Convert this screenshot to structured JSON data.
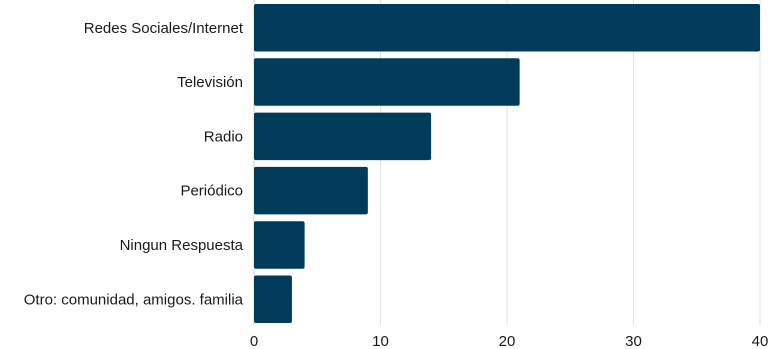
{
  "chart_data": {
    "type": "bar",
    "orientation": "horizontal",
    "categories": [
      "Redes Sociales/Internet",
      "Televisión",
      "Radio",
      "Periódico",
      "Ningun Respuesta",
      "Otro: comunidad, amigos. familia"
    ],
    "values": [
      40,
      21,
      14,
      9,
      4,
      3
    ],
    "xlim": [
      0,
      40
    ],
    "xticks": [
      0,
      10,
      20,
      30,
      40
    ],
    "title": "",
    "xlabel": "",
    "ylabel": "",
    "grid": "vertical",
    "legend": "none",
    "bar_color": "#003b5c"
  }
}
